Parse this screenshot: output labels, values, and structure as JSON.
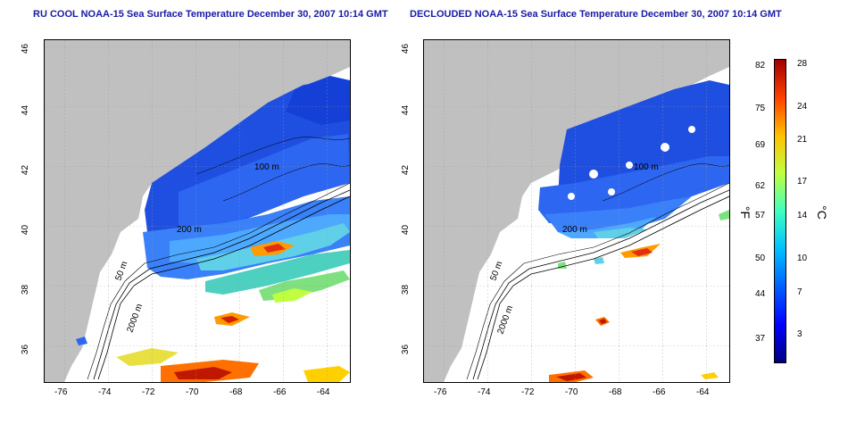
{
  "titles": {
    "left": "RU COOL NOAA-15 Sea Surface Temperature December 30, 2007 10:14 GMT",
    "right": "DECLOUDED NOAA-15 Sea Surface Temperature December 30, 2007 10:14 GMT"
  },
  "axes": {
    "lon_ticks": [
      "-76",
      "-74",
      "-72",
      "-70",
      "-68",
      "-66",
      "-64"
    ],
    "lat_ticks": [
      "36",
      "38",
      "40",
      "42",
      "44",
      "46"
    ]
  },
  "contour_labels": {
    "c100": "100 m",
    "c200": "200 m",
    "c50": "50 m",
    "c2000": "2000 m"
  },
  "colorbar": {
    "f_ticks": [
      "82",
      "75",
      "69",
      "62",
      "57",
      "50",
      "44",
      "37"
    ],
    "c_ticks": [
      "28",
      "24",
      "21",
      "17",
      "14",
      "10",
      "7",
      "3"
    ],
    "f_unit": "°F",
    "c_unit": "°C",
    "colors": [
      "#000080",
      "#0000ff",
      "#0060ff",
      "#00c0ff",
      "#40ffc0",
      "#c0ff40",
      "#ffc000",
      "#ff4000",
      "#a00000"
    ]
  },
  "colors": {
    "land": "#c0c0c0",
    "ocean_missing": "#ffffff",
    "title": "#1a1aa6"
  }
}
